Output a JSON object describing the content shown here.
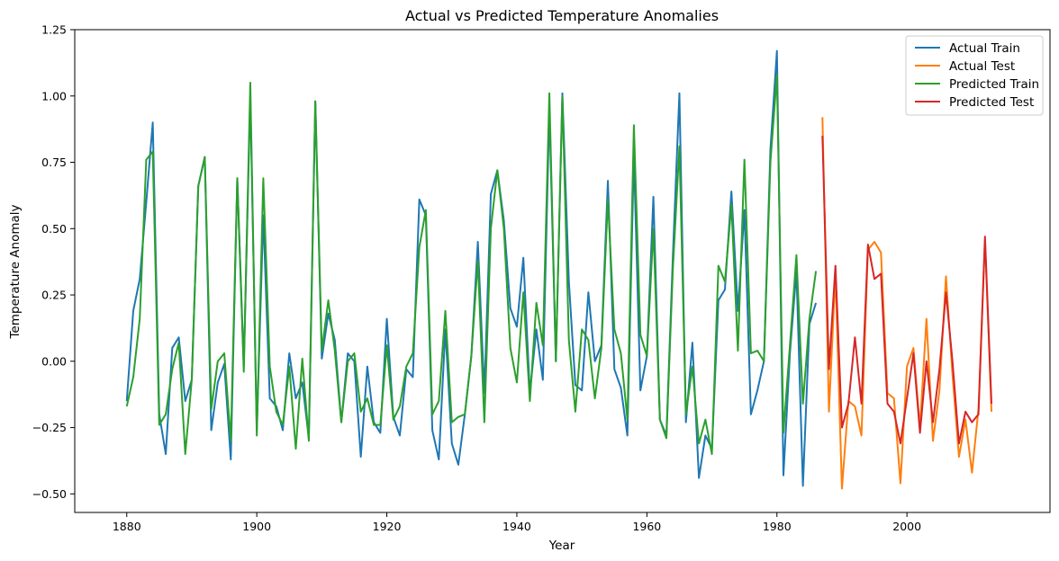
{
  "chart_data": {
    "type": "line",
    "title": "Actual vs Predicted Temperature Anomalies",
    "xlabel": "Year",
    "ylabel": "Temperature Anomaly",
    "xlim": [
      1872,
      2022
    ],
    "ylim": [
      -0.57,
      1.25
    ],
    "xticks": [
      1880,
      1900,
      1920,
      1940,
      1960,
      1980,
      2000
    ],
    "yticks": [
      -0.5,
      -0.25,
      0.0,
      0.25,
      0.5,
      0.75,
      1.0,
      1.25
    ],
    "ytick_labels": [
      "−0.50",
      "−0.25",
      "0.00",
      "0.25",
      "0.50",
      "0.75",
      "1.00",
      "1.25"
    ],
    "grid": false,
    "legend_position": "top-right",
    "series": [
      {
        "name": "Actual Train",
        "color": "#1f77b4",
        "x": [
          1880,
          1881,
          1882,
          1883,
          1884,
          1885,
          1886,
          1887,
          1888,
          1889,
          1890,
          1891,
          1892,
          1893,
          1894,
          1895,
          1896,
          1897,
          1898,
          1899,
          1900,
          1901,
          1902,
          1903,
          1904,
          1905,
          1906,
          1907,
          1908,
          1909,
          1910,
          1911,
          1912,
          1913,
          1914,
          1915,
          1916,
          1917,
          1918,
          1919,
          1920,
          1921,
          1922,
          1923,
          1924,
          1925,
          1926,
          1927,
          1928,
          1929,
          1930,
          1931,
          1932,
          1933,
          1934,
          1935,
          1936,
          1937,
          1938,
          1939,
          1940,
          1941,
          1942,
          1943,
          1944,
          1945,
          1946,
          1947,
          1948,
          1949,
          1950,
          1951,
          1952,
          1953,
          1954,
          1955,
          1956,
          1957,
          1958,
          1959,
          1960,
          1961,
          1962,
          1963,
          1964,
          1965,
          1966,
          1967,
          1968,
          1969,
          1970,
          1971,
          1972,
          1973,
          1974,
          1975,
          1976,
          1977,
          1978,
          1979,
          1980,
          1981,
          1982,
          1983,
          1984,
          1985,
          1986
        ],
        "y": [
          -0.15,
          0.19,
          0.31,
          0.6,
          0.9,
          -0.2,
          -0.35,
          0.05,
          0.09,
          -0.15,
          -0.07,
          0.66,
          0.77,
          -0.26,
          -0.08,
          -0.01,
          -0.37,
          0.69,
          -0.02,
          1.0,
          -0.26,
          0.55,
          -0.14,
          -0.17,
          -0.26,
          0.03,
          -0.14,
          -0.08,
          -0.29,
          0.98,
          0.01,
          0.18,
          0.08,
          -0.23,
          0.03,
          0.0,
          -0.36,
          -0.02,
          -0.23,
          -0.27,
          0.16,
          -0.21,
          -0.28,
          -0.03,
          -0.06,
          0.61,
          0.55,
          -0.26,
          -0.37,
          0.12,
          -0.31,
          -0.39,
          -0.2,
          0.02,
          0.45,
          -0.12,
          0.63,
          0.72,
          0.53,
          0.2,
          0.13,
          0.39,
          -0.12,
          0.12,
          -0.07,
          0.95,
          0.0,
          1.01,
          0.3,
          -0.09,
          -0.11,
          0.26,
          0.0,
          0.06,
          0.68,
          -0.03,
          -0.1,
          -0.28,
          0.78,
          -0.11,
          0.02,
          0.62,
          -0.22,
          -0.28,
          0.4,
          1.01,
          -0.23,
          0.07,
          -0.44,
          -0.28,
          -0.33,
          0.23,
          0.27,
          0.64,
          0.19,
          0.57,
          -0.2,
          -0.11,
          0.0,
          0.8,
          1.17,
          -0.43,
          0.03,
          0.34,
          -0.47,
          0.14,
          0.22
        ]
      },
      {
        "name": "Actual Test",
        "color": "#ff7f0e",
        "x": [
          1987,
          1988,
          1989,
          1990,
          1991,
          1992,
          1993,
          1994,
          1995,
          1996,
          1997,
          1998,
          1999,
          2000,
          2001,
          2002,
          2003,
          2004,
          2005,
          2006,
          2007,
          2008,
          2009,
          2010,
          2011,
          2012,
          2013
        ],
        "y": [
          0.92,
          -0.19,
          0.33,
          -0.48,
          -0.15,
          -0.17,
          -0.28,
          0.42,
          0.45,
          0.41,
          -0.12,
          -0.14,
          -0.46,
          -0.02,
          0.05,
          -0.25,
          0.16,
          -0.3,
          -0.11,
          0.32,
          -0.05,
          -0.36,
          -0.22,
          -0.42,
          -0.18,
          0.46,
          -0.19
        ]
      },
      {
        "name": "Predicted Train",
        "color": "#2ca02c",
        "x": [
          1880,
          1881,
          1882,
          1883,
          1884,
          1885,
          1886,
          1887,
          1888,
          1889,
          1890,
          1891,
          1892,
          1893,
          1894,
          1895,
          1896,
          1897,
          1898,
          1899,
          1900,
          1901,
          1902,
          1903,
          1904,
          1905,
          1906,
          1907,
          1908,
          1909,
          1910,
          1911,
          1912,
          1913,
          1914,
          1915,
          1916,
          1917,
          1918,
          1919,
          1920,
          1921,
          1922,
          1923,
          1924,
          1925,
          1926,
          1927,
          1928,
          1929,
          1930,
          1931,
          1932,
          1933,
          1934,
          1935,
          1936,
          1937,
          1938,
          1939,
          1940,
          1941,
          1942,
          1943,
          1944,
          1945,
          1946,
          1947,
          1948,
          1949,
          1950,
          1951,
          1952,
          1953,
          1954,
          1955,
          1956,
          1957,
          1958,
          1959,
          1960,
          1961,
          1962,
          1963,
          1964,
          1965,
          1966,
          1967,
          1968,
          1969,
          1970,
          1971,
          1972,
          1973,
          1974,
          1975,
          1976,
          1977,
          1978,
          1979,
          1980,
          1981,
          1982,
          1983,
          1984,
          1985,
          1986
        ],
        "y": [
          -0.17,
          -0.06,
          0.16,
          0.76,
          0.79,
          -0.24,
          -0.2,
          -0.03,
          0.07,
          -0.35,
          -0.07,
          0.66,
          0.77,
          -0.18,
          0.0,
          0.03,
          -0.3,
          0.69,
          -0.04,
          1.05,
          -0.28,
          0.69,
          -0.02,
          -0.19,
          -0.24,
          -0.02,
          -0.33,
          0.01,
          -0.3,
          0.98,
          0.04,
          0.23,
          0.04,
          -0.23,
          0.0,
          0.03,
          -0.19,
          -0.14,
          -0.24,
          -0.24,
          0.06,
          -0.22,
          -0.17,
          -0.02,
          0.03,
          0.43,
          0.57,
          -0.2,
          -0.15,
          0.19,
          -0.23,
          -0.21,
          -0.2,
          0.02,
          0.38,
          -0.23,
          0.5,
          0.72,
          0.5,
          0.05,
          -0.08,
          0.26,
          -0.15,
          0.22,
          0.06,
          1.01,
          0.0,
          1.0,
          0.08,
          -0.19,
          0.12,
          0.08,
          -0.14,
          0.05,
          0.61,
          0.12,
          0.03,
          -0.22,
          0.89,
          0.1,
          0.02,
          0.5,
          -0.22,
          -0.29,
          0.35,
          0.81,
          -0.2,
          -0.02,
          -0.31,
          -0.22,
          -0.35,
          0.36,
          0.3,
          0.59,
          0.04,
          0.76,
          0.03,
          0.04,
          0.0,
          0.75,
          1.08,
          -0.27,
          0.06,
          0.4,
          -0.16,
          0.16,
          0.34
        ]
      },
      {
        "name": "Predicted Test",
        "color": "#d62728",
        "x": [
          1987,
          1988,
          1989,
          1990,
          1991,
          1992,
          1993,
          1994,
          1995,
          1996,
          1997,
          1998,
          1999,
          2000,
          2001,
          2002,
          2003,
          2004,
          2005,
          2006,
          2007,
          2008,
          2009,
          2010,
          2011,
          2012,
          2013
        ],
        "y": [
          0.85,
          -0.03,
          0.36,
          -0.25,
          -0.16,
          0.09,
          -0.16,
          0.44,
          0.31,
          0.33,
          -0.16,
          -0.19,
          -0.31,
          -0.14,
          0.03,
          -0.27,
          0.0,
          -0.23,
          -0.03,
          0.26,
          0.0,
          -0.31,
          -0.19,
          -0.23,
          -0.2,
          0.47,
          -0.16
        ]
      }
    ]
  }
}
